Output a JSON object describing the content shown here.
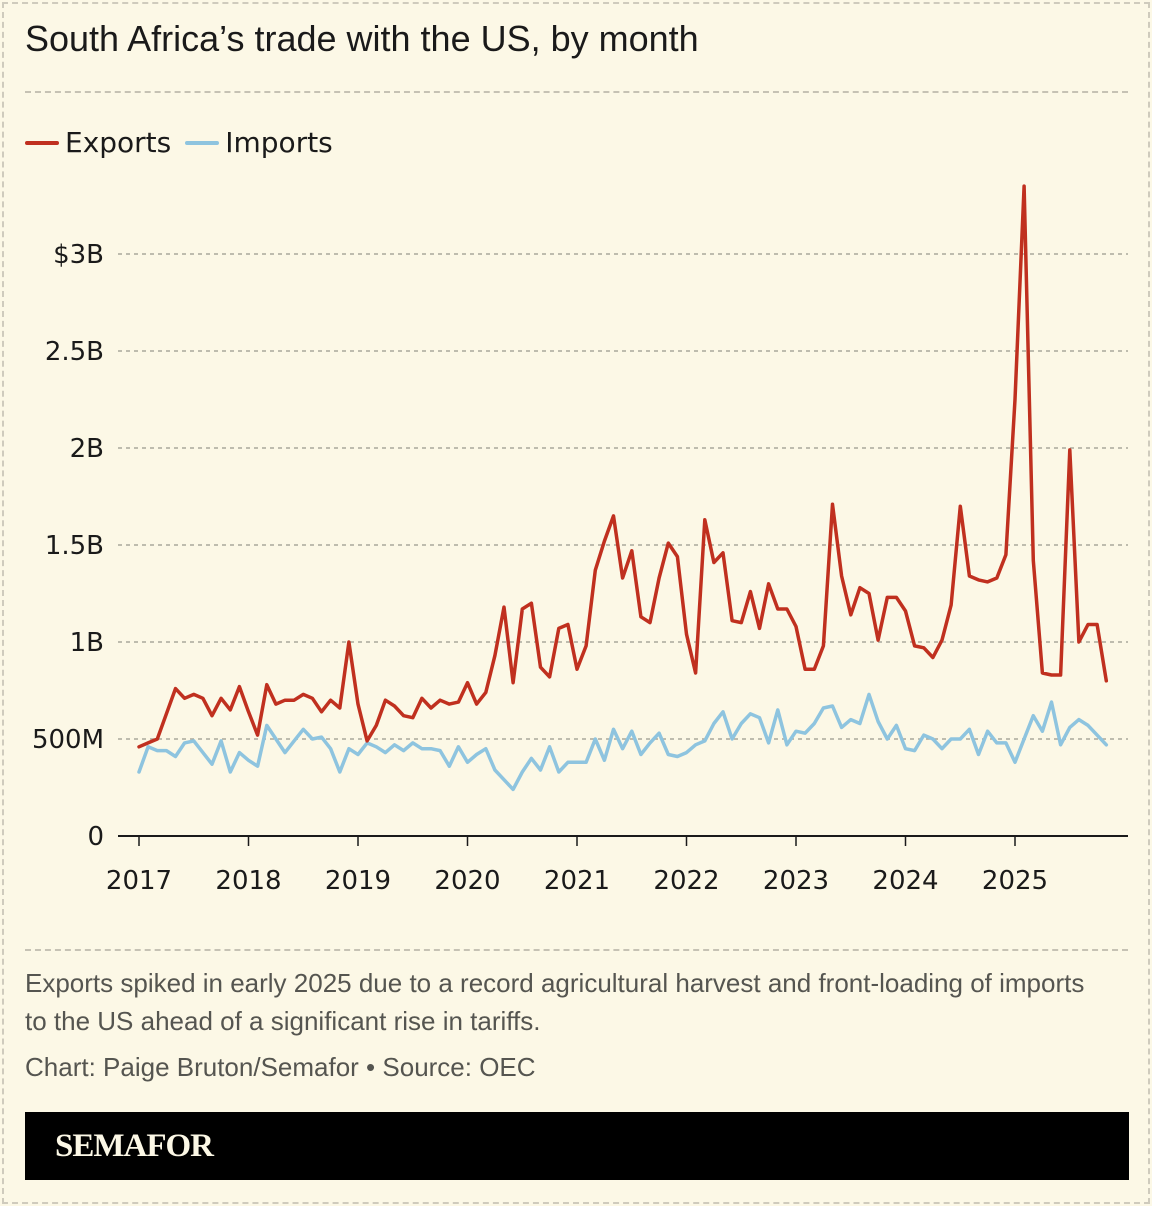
{
  "title": "South Africa’s trade with the US, by month",
  "note": "Exports spiked in early 2025 due to a record agricultural harvest and front-loading of imports to the US ahead of a significant rise in tariffs.",
  "credit": "Chart: Paige Bruton/Semafor • Source: OEC",
  "brand": "SEMAFOR",
  "colors": {
    "background": "#fcf8e6",
    "exports": "#c0301f",
    "imports": "#8ec4df",
    "grid": "#aaa79c",
    "axis": "#1a1a1a"
  },
  "legend": [
    {
      "name": "Exports",
      "color": "#c0301f"
    },
    {
      "name": "Imports",
      "color": "#8ec4df"
    }
  ],
  "chart_data": {
    "type": "line",
    "title": "South Africa’s trade with the US, by month",
    "xlabel": "",
    "ylabel": "",
    "x_start": "2017-01",
    "x_frequency": "monthly",
    "x_ticks": [
      "2017",
      "2018",
      "2019",
      "2020",
      "2021",
      "2022",
      "2023",
      "2024",
      "2025"
    ],
    "y_ticks": [
      {
        "value": 0,
        "label": "0"
      },
      {
        "value": 0.5,
        "label": "500M"
      },
      {
        "value": 1,
        "label": "1B"
      },
      {
        "value": 1.5,
        "label": "1.5B"
      },
      {
        "value": 2,
        "label": "2B"
      },
      {
        "value": 2.5,
        "label": "2.5B"
      },
      {
        "value": 3,
        "label": "$3B"
      }
    ],
    "y_unit": "billion USD",
    "ylim": [
      0,
      3.4
    ],
    "grid": true,
    "legend_position": "top-left",
    "series": [
      {
        "name": "Exports",
        "values": [
          0.46,
          0.48,
          0.5,
          0.63,
          0.76,
          0.71,
          0.73,
          0.71,
          0.62,
          0.71,
          0.65,
          0.77,
          0.64,
          0.52,
          0.78,
          0.68,
          0.7,
          0.7,
          0.73,
          0.71,
          0.64,
          0.7,
          0.66,
          1.0,
          0.68,
          0.49,
          0.57,
          0.7,
          0.67,
          0.62,
          0.61,
          0.71,
          0.66,
          0.7,
          0.68,
          0.69,
          0.79,
          0.68,
          0.74,
          0.93,
          1.18,
          0.79,
          1.17,
          1.2,
          0.87,
          0.82,
          1.07,
          1.09,
          0.86,
          0.98,
          1.37,
          1.52,
          1.65,
          1.33,
          1.47,
          1.13,
          1.1,
          1.33,
          1.51,
          1.44,
          1.04,
          0.84,
          1.63,
          1.41,
          1.46,
          1.11,
          1.1,
          1.26,
          1.07,
          1.3,
          1.17,
          1.17,
          1.08,
          0.86,
          0.86,
          0.98,
          1.71,
          1.34,
          1.14,
          1.28,
          1.25,
          1.01,
          1.23,
          1.23,
          1.16,
          0.98,
          0.97,
          0.92,
          1.01,
          1.19,
          1.7,
          1.34,
          1.32,
          1.31,
          1.33,
          1.45,
          2.25,
          3.35,
          1.42,
          0.84,
          0.83,
          0.83,
          1.99,
          1.0,
          1.09,
          1.09,
          0.8
        ]
      },
      {
        "name": "Imports",
        "values": [
          0.33,
          0.46,
          0.44,
          0.44,
          0.41,
          0.48,
          0.49,
          0.43,
          0.37,
          0.49,
          0.33,
          0.43,
          0.39,
          0.36,
          0.57,
          0.5,
          0.43,
          0.49,
          0.55,
          0.5,
          0.51,
          0.45,
          0.33,
          0.45,
          0.42,
          0.48,
          0.46,
          0.43,
          0.47,
          0.44,
          0.48,
          0.45,
          0.45,
          0.44,
          0.36,
          0.46,
          0.38,
          0.42,
          0.45,
          0.34,
          0.29,
          0.24,
          0.33,
          0.4,
          0.34,
          0.46,
          0.33,
          0.38,
          0.38,
          0.38,
          0.5,
          0.39,
          0.55,
          0.45,
          0.54,
          0.42,
          0.48,
          0.53,
          0.42,
          0.41,
          0.43,
          0.47,
          0.49,
          0.58,
          0.64,
          0.5,
          0.58,
          0.63,
          0.61,
          0.48,
          0.65,
          0.47,
          0.54,
          0.53,
          0.58,
          0.66,
          0.67,
          0.56,
          0.6,
          0.58,
          0.73,
          0.59,
          0.5,
          0.57,
          0.45,
          0.44,
          0.52,
          0.5,
          0.45,
          0.5,
          0.5,
          0.55,
          0.42,
          0.54,
          0.48,
          0.48,
          0.38,
          0.5,
          0.62,
          0.54,
          0.69,
          0.47,
          0.56,
          0.6,
          0.57,
          0.52,
          0.47
        ]
      }
    ]
  }
}
